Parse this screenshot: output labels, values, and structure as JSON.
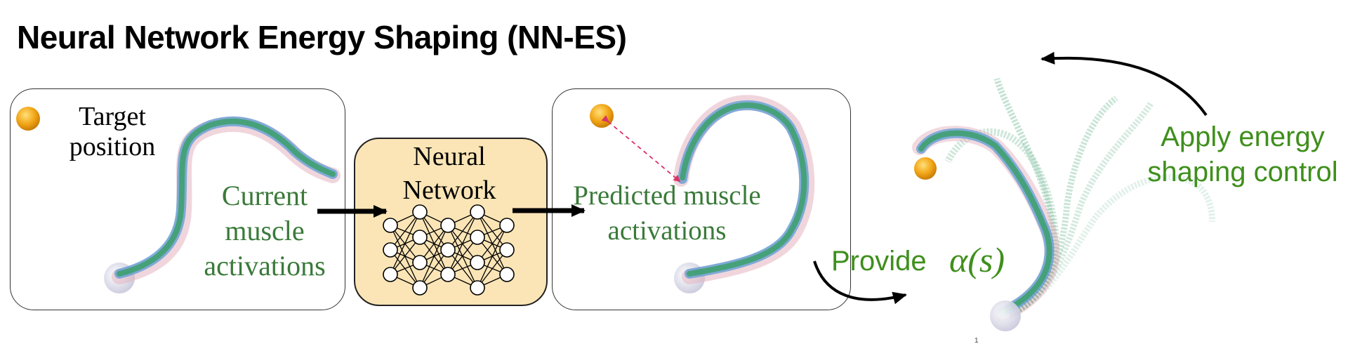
{
  "title": "Neural Network Energy Shaping (NN-ES)",
  "panel1": {
    "target_line1": "Target",
    "target_line2": "position",
    "current_line1": "Current",
    "current_line2": "muscle",
    "current_line3": "activations"
  },
  "nn_box": {
    "line1": "Neural",
    "line2": "Network"
  },
  "panel2": {
    "predicted_line1": "Predicted muscle",
    "predicted_line2": "activations"
  },
  "provide": {
    "text": "Provide",
    "math": "α(s)"
  },
  "apply": {
    "line1": "Apply energy",
    "line2": "shaping control"
  },
  "page_number": "1",
  "colors": {
    "target_ball": "#f2a516",
    "arm_blue": "#5b9bd5",
    "arm_green": "#3fa070",
    "arm_pink": "#e3b4c0",
    "green_text": "#3a7a3a",
    "bright_green_text": "#3f8f1c",
    "nn_fill": "#fbe5b6",
    "dashed_arrow": "#d9336b"
  }
}
